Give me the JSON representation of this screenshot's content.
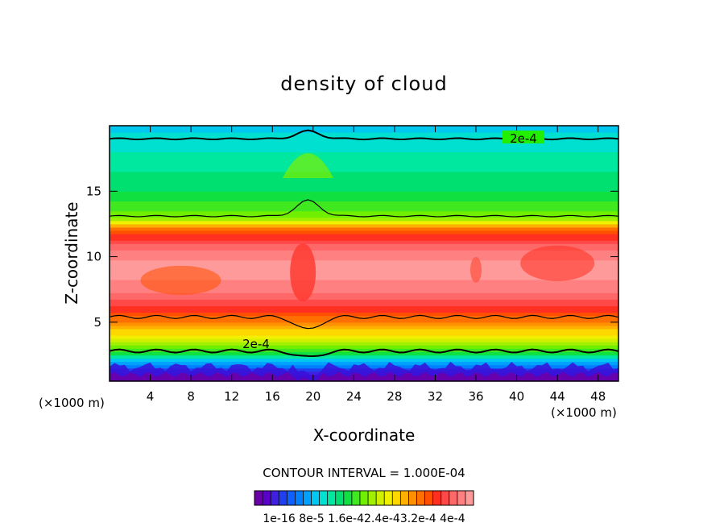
{
  "chart_data": {
    "type": "heatmap",
    "title": "density of cloud",
    "xlabel": "X-coordinate",
    "ylabel": "Z-coordinate",
    "x_unit_left": "(×1000 m)",
    "x_unit_right": "(×1000 m)",
    "xlim": [
      0,
      50
    ],
    "ylim": [
      0.5,
      20
    ],
    "x_ticks": [
      "4",
      "8",
      "12",
      "16",
      "20",
      "24",
      "28",
      "32",
      "36",
      "40",
      "44",
      "48"
    ],
    "x_tick_values": [
      4,
      8,
      12,
      16,
      20,
      24,
      28,
      32,
      36,
      40,
      44,
      48
    ],
    "y_ticks": [
      "5",
      "10",
      "15"
    ],
    "y_tick_values": [
      5,
      10,
      15
    ],
    "contour_interval": "CONTOUR INTERVAL = 1.000E-04",
    "contour_label": "2e-4",
    "colorbar_labels": [
      "1e-16",
      "8e-5",
      "1.6e-4",
      "2.4e-4",
      "3.2e-4",
      "4e-4"
    ],
    "colorbar_display": "1e-16 8e-5 1.6e-42.4e-43.2e-4 4e-4",
    "colorbar_colors": [
      "#6a00a8",
      "#5a00c8",
      "#4020e0",
      "#2040f0",
      "#1060ff",
      "#0080ff",
      "#00a0ff",
      "#00c8f0",
      "#00e0d0",
      "#00e8a0",
      "#00e070",
      "#10e040",
      "#40e820",
      "#70f000",
      "#a0f000",
      "#d0f000",
      "#f0f000",
      "#ffd800",
      "#ffb000",
      "#ff9000",
      "#ff7000",
      "#ff5000",
      "#ff3020",
      "#ff4848",
      "#ff6868",
      "#ff8080",
      "#ff9a9a"
    ],
    "profile_z": [
      0.5,
      1.0,
      1.5,
      2.0,
      2.5,
      3.0,
      4.0,
      5.0,
      6.0,
      7.0,
      8.0,
      9.0,
      10.0,
      11.0,
      12.0,
      13.0,
      14.0,
      15.0,
      16.0,
      17.0,
      18.0,
      19.0,
      20.0
    ],
    "profile_density": [
      0.0,
      3e-05,
      6e-05,
      0.0001,
      0.00015,
      0.0002,
      0.00025,
      0.0003,
      0.00034,
      0.00037,
      0.00039,
      0.0004,
      0.00039,
      0.00036,
      0.00032,
      0.0002,
      0.00018,
      0.00016,
      0.00015,
      0.00014,
      0.00013,
      0.00012,
      0.00011
    ]
  }
}
